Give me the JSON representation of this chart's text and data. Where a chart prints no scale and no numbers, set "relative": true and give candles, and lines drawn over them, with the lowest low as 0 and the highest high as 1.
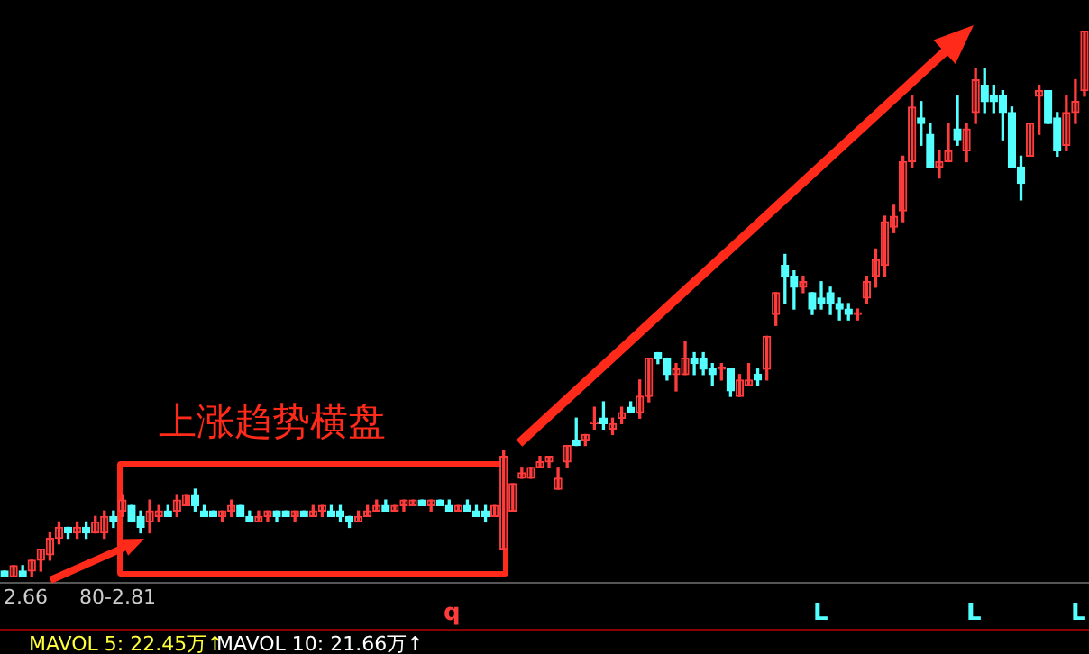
{
  "chart_data": {
    "type": "candlestick",
    "relative": true,
    "categories": [
      null,
      null,
      null,
      null,
      null,
      null,
      null,
      null,
      null,
      null,
      null,
      null,
      null,
      null,
      null,
      null,
      null,
      null,
      null,
      null,
      null,
      null,
      null,
      null,
      null,
      null,
      null,
      null,
      null,
      null,
      null,
      null,
      null,
      null,
      null,
      null,
      null,
      null,
      null,
      null,
      null,
      null,
      null,
      null,
      null,
      null,
      null,
      null,
      null,
      null,
      null,
      null,
      null,
      null,
      null,
      null,
      null,
      null,
      null,
      null,
      null,
      null,
      null,
      null,
      null,
      null,
      null,
      null,
      null,
      null,
      null,
      null,
      null,
      null,
      null,
      null,
      null,
      null,
      null,
      null,
      null,
      null,
      null,
      null,
      null,
      null,
      null,
      null,
      null,
      null,
      null,
      null,
      null,
      null,
      null,
      null,
      null,
      null,
      null,
      null,
      null,
      null,
      null,
      null,
      null,
      null,
      null,
      null,
      null,
      null,
      null,
      null,
      null,
      null,
      null,
      null,
      null,
      null,
      null,
      null
    ],
    "ohlc": [
      [
        0.01,
        0.01,
        0,
        0
      ],
      [
        0,
        0.02,
        0,
        0.02
      ],
      [
        0.01,
        0.02,
        0,
        0
      ],
      [
        0.01,
        0.03,
        0,
        0.03
      ],
      [
        0.03,
        0.05,
        0.01,
        0.05
      ],
      [
        0.04,
        0.08,
        0.03,
        0.07
      ],
      [
        0.07,
        0.1,
        0.06,
        0.09
      ],
      [
        0.09,
        0.09,
        0.07,
        0.08
      ],
      [
        0.08,
        0.1,
        0.07,
        0.09
      ],
      [
        0.09,
        0.1,
        0.07,
        0.08
      ],
      [
        0.08,
        0.11,
        0.08,
        0.1
      ],
      [
        0.08,
        0.12,
        0.07,
        0.11
      ],
      [
        0.11,
        0.12,
        0.09,
        0.1
      ],
      [
        0.12,
        0.15,
        0.11,
        0.14
      ],
      [
        0.13,
        0.13,
        0.1,
        0.1
      ],
      [
        0.11,
        0.12,
        0.08,
        0.09
      ],
      [
        0.1,
        0.14,
        0.08,
        0.12
      ],
      [
        0.11,
        0.13,
        0.1,
        0.12
      ],
      [
        0.12,
        0.13,
        0.11,
        0.11
      ],
      [
        0.12,
        0.15,
        0.11,
        0.14
      ],
      [
        0.13,
        0.15,
        0.13,
        0.15
      ],
      [
        0.15,
        0.16,
        0.12,
        0.13
      ],
      [
        0.12,
        0.13,
        0.11,
        0.11
      ],
      [
        0.12,
        0.12,
        0.11,
        0.11
      ],
      [
        0.11,
        0.12,
        0.1,
        0.12
      ],
      [
        0.12,
        0.14,
        0.11,
        0.13
      ],
      [
        0.13,
        0.13,
        0.11,
        0.11
      ],
      [
        0.11,
        0.12,
        0.1,
        0.1
      ],
      [
        0.1,
        0.12,
        0.1,
        0.11
      ],
      [
        0.11,
        0.12,
        0.1,
        0.12
      ],
      [
        0.12,
        0.12,
        0.1,
        0.11
      ],
      [
        0.12,
        0.12,
        0.11,
        0.11
      ],
      [
        0.11,
        0.12,
        0.1,
        0.12
      ],
      [
        0.12,
        0.12,
        0.11,
        0.11
      ],
      [
        0.11,
        0.13,
        0.11,
        0.12
      ],
      [
        0.12,
        0.13,
        0.11,
        0.13
      ],
      [
        0.12,
        0.13,
        0.11,
        0.11
      ],
      [
        0.12,
        0.13,
        0.1,
        0.11
      ],
      [
        0.11,
        0.11,
        0.09,
        0.1
      ],
      [
        0.1,
        0.12,
        0.1,
        0.11
      ],
      [
        0.11,
        0.13,
        0.11,
        0.12
      ],
      [
        0.12,
        0.14,
        0.12,
        0.13
      ],
      [
        0.13,
        0.14,
        0.12,
        0.12
      ],
      [
        0.12,
        0.13,
        0.12,
        0.13
      ],
      [
        0.13,
        0.14,
        0.12,
        0.14
      ],
      [
        0.13,
        0.14,
        0.13,
        0.14
      ],
      [
        0.14,
        0.14,
        0.13,
        0.13
      ],
      [
        0.13,
        0.14,
        0.12,
        0.14
      ],
      [
        0.14,
        0.14,
        0.13,
        0.13
      ],
      [
        0.13,
        0.14,
        0.12,
        0.12
      ],
      [
        0.12,
        0.13,
        0.12,
        0.13
      ],
      [
        0.13,
        0.14,
        0.12,
        0.12
      ],
      [
        0.12,
        0.13,
        0.11,
        0.11
      ],
      [
        0.12,
        0.13,
        0.1,
        0.11
      ],
      [
        0.11,
        0.13,
        0.11,
        0.13
      ],
      [
        0.05,
        0.23,
        0.05,
        0.22
      ],
      [
        0.12,
        0.17,
        0.12,
        0.17
      ],
      [
        0.18,
        0.2,
        0.18,
        0.19
      ],
      [
        0.18,
        0.2,
        0.18,
        0.2
      ],
      [
        0.2,
        0.22,
        0.2,
        0.21
      ],
      [
        0.21,
        0.22,
        0.2,
        0.22
      ],
      [
        0.16,
        0.2,
        0.16,
        0.18
      ],
      [
        0.21,
        0.24,
        0.2,
        0.24
      ],
      [
        0.25,
        0.29,
        0.24,
        0.24
      ],
      [
        0.25,
        0.26,
        0.24,
        0.26
      ],
      [
        0.28,
        0.31,
        0.27,
        0.28
      ],
      [
        0.29,
        0.32,
        0.27,
        0.28
      ],
      [
        0.27,
        0.29,
        0.26,
        0.28
      ],
      [
        0.29,
        0.31,
        0.28,
        0.3
      ],
      [
        0.31,
        0.32,
        0.3,
        0.3
      ],
      [
        0.3,
        0.36,
        0.29,
        0.33
      ],
      [
        0.33,
        0.4,
        0.32,
        0.4
      ],
      [
        0.41,
        0.41,
        0.39,
        0.4
      ],
      [
        0.4,
        0.4,
        0.36,
        0.37
      ],
      [
        0.37,
        0.39,
        0.34,
        0.38
      ],
      [
        0.37,
        0.43,
        0.37,
        0.4
      ],
      [
        0.4,
        0.41,
        0.37,
        0.39
      ],
      [
        0.4,
        0.41,
        0.37,
        0.38
      ],
      [
        0.38,
        0.39,
        0.35,
        0.37
      ],
      [
        0.38,
        0.39,
        0.36,
        0.38
      ],
      [
        0.38,
        0.38,
        0.33,
        0.34
      ],
      [
        0.33,
        0.37,
        0.33,
        0.36
      ],
      [
        0.35,
        0.39,
        0.35,
        0.36
      ],
      [
        0.37,
        0.38,
        0.35,
        0.36
      ],
      [
        0.38,
        0.44,
        0.36,
        0.44
      ],
      [
        0.48,
        0.52,
        0.46,
        0.52
      ],
      [
        0.57,
        0.59,
        0.5,
        0.55
      ],
      [
        0.55,
        0.56,
        0.49,
        0.53
      ],
      [
        0.53,
        0.55,
        0.52,
        0.54
      ],
      [
        0.52,
        0.52,
        0.48,
        0.49
      ],
      [
        0.51,
        0.54,
        0.49,
        0.5
      ],
      [
        0.52,
        0.53,
        0.48,
        0.5
      ],
      [
        0.5,
        0.51,
        0.47,
        0.49
      ],
      [
        0.49,
        0.5,
        0.47,
        0.48
      ],
      [
        0.48,
        0.49,
        0.47,
        0.48
      ],
      [
        0.51,
        0.55,
        0.5,
        0.54
      ],
      [
        0.55,
        0.6,
        0.53,
        0.58
      ],
      [
        0.57,
        0.66,
        0.55,
        0.65
      ],
      [
        0.64,
        0.68,
        0.63,
        0.66
      ],
      [
        0.67,
        0.77,
        0.65,
        0.76
      ],
      [
        0.76,
        0.88,
        0.75,
        0.86
      ],
      [
        0.84,
        0.87,
        0.79,
        0.83
      ],
      [
        0.81,
        0.83,
        0.75,
        0.75
      ],
      [
        0.75,
        0.78,
        0.73,
        0.76
      ],
      [
        0.76,
        0.83,
        0.76,
        0.78
      ],
      [
        0.82,
        0.88,
        0.79,
        0.8
      ],
      [
        0.78,
        0.83,
        0.76,
        0.82
      ],
      [
        0.85,
        0.93,
        0.83,
        0.91
      ],
      [
        0.9,
        0.93,
        0.85,
        0.87
      ],
      [
        0.88,
        0.9,
        0.85,
        0.87
      ],
      [
        0.88,
        0.89,
        0.8,
        0.85
      ],
      [
        0.85,
        0.86,
        0.75,
        0.75
      ],
      [
        0.75,
        0.77,
        0.69,
        0.72
      ],
      [
        0.77,
        0.83,
        0.77,
        0.83
      ],
      [
        0.88,
        0.9,
        0.81,
        0.89
      ],
      [
        0.89,
        0.89,
        0.83,
        0.83
      ],
      [
        0.84,
        0.85,
        0.77,
        0.78
      ],
      [
        0.79,
        0.88,
        0.78,
        0.85
      ],
      [
        0.85,
        0.91,
        0.83,
        0.87
      ],
      [
        0.89,
        1,
        0.88,
        1
      ]
    ],
    "annotations": [
      "上涨趋势横盘",
      "2.66",
      "80-2.81",
      "q",
      "L",
      "L",
      "L",
      "MAVOL 5: 22.45万↑",
      "MAVOL 10: 21.66万↑"
    ]
  }
}
